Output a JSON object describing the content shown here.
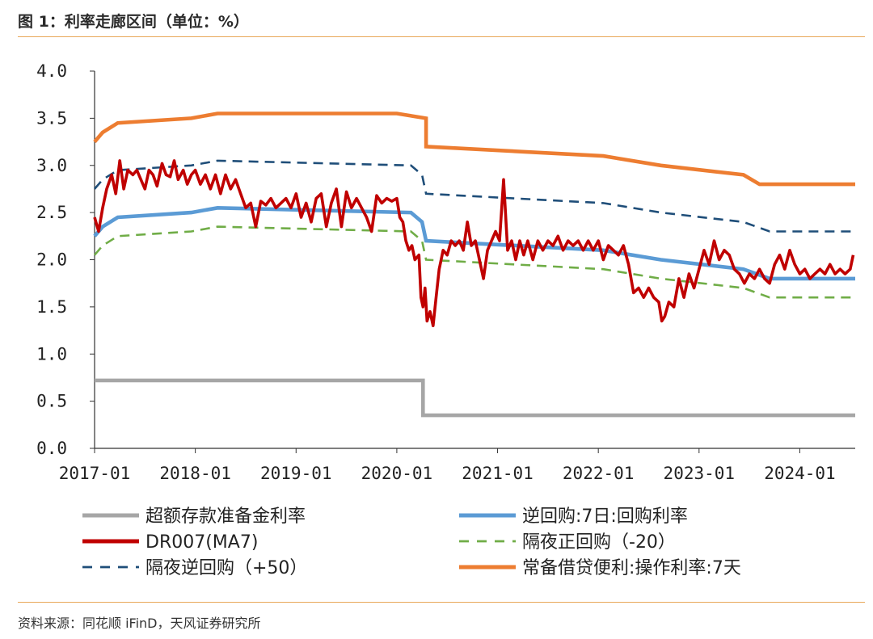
{
  "header": {
    "title": "图 1：利率走廊区间（单位：%）"
  },
  "footer": {
    "source": "资料来源：同花顺 iFinD，天风证券研究所"
  },
  "chart_data": {
    "type": "line",
    "title": "利率走廊区间（单位：%）",
    "ylim": [
      0,
      4
    ],
    "yticks": [
      "0.0",
      "0.5",
      "1.0",
      "1.5",
      "2.0",
      "2.5",
      "3.0",
      "3.5",
      "4.0"
    ],
    "xlim": [
      2017.0,
      2024.55
    ],
    "xticks": [
      {
        "label": "2017-01",
        "t": 2017.0
      },
      {
        "label": "2018-01",
        "t": 2018.0
      },
      {
        "label": "2019-01",
        "t": 2019.0
      },
      {
        "label": "2020-01",
        "t": 2020.0
      },
      {
        "label": "2021-01",
        "t": 2021.0
      },
      {
        "label": "2022-01",
        "t": 2022.0
      },
      {
        "label": "2023-01",
        "t": 2023.0
      },
      {
        "label": "2024-01",
        "t": 2024.0
      }
    ],
    "series": [
      {
        "name": "超额存款准备金利率",
        "color": "#a6a6a6",
        "style": "solid",
        "points": [
          [
            2017.0,
            0.72
          ],
          [
            2020.26,
            0.72
          ],
          [
            2020.26,
            0.35
          ],
          [
            2024.55,
            0.35
          ]
        ]
      },
      {
        "name": "逆回购:7日:回购利率",
        "color": "#5b9bd5",
        "style": "solid",
        "points": [
          [
            2017.0,
            2.25
          ],
          [
            2017.08,
            2.35
          ],
          [
            2017.23,
            2.45
          ],
          [
            2017.96,
            2.5
          ],
          [
            2018.22,
            2.55
          ],
          [
            2020.14,
            2.5
          ],
          [
            2020.25,
            2.4
          ],
          [
            2020.29,
            2.2
          ],
          [
            2022.05,
            2.1
          ],
          [
            2022.62,
            2.0
          ],
          [
            2023.44,
            1.9
          ],
          [
            2023.7,
            1.8
          ],
          [
            2024.55,
            1.8
          ]
        ]
      },
      {
        "name": "DR007(MA7)",
        "color": "#c00000",
        "style": "solid",
        "points": [
          [
            2017.0,
            2.45
          ],
          [
            2017.04,
            2.3
          ],
          [
            2017.08,
            2.55
          ],
          [
            2017.12,
            2.75
          ],
          [
            2017.17,
            2.9
          ],
          [
            2017.21,
            2.7
          ],
          [
            2017.25,
            3.05
          ],
          [
            2017.29,
            2.75
          ],
          [
            2017.33,
            2.95
          ],
          [
            2017.38,
            2.9
          ],
          [
            2017.42,
            2.95
          ],
          [
            2017.46,
            2.85
          ],
          [
            2017.5,
            2.75
          ],
          [
            2017.54,
            2.95
          ],
          [
            2017.58,
            2.9
          ],
          [
            2017.62,
            2.78
          ],
          [
            2017.67,
            3.02
          ],
          [
            2017.71,
            2.9
          ],
          [
            2017.75,
            2.88
          ],
          [
            2017.79,
            3.05
          ],
          [
            2017.83,
            2.85
          ],
          [
            2017.88,
            2.95
          ],
          [
            2017.92,
            2.8
          ],
          [
            2017.96,
            2.9
          ],
          [
            2018.0,
            2.95
          ],
          [
            2018.05,
            2.8
          ],
          [
            2018.1,
            2.9
          ],
          [
            2018.15,
            2.75
          ],
          [
            2018.2,
            2.9
          ],
          [
            2018.25,
            2.7
          ],
          [
            2018.3,
            2.9
          ],
          [
            2018.35,
            2.75
          ],
          [
            2018.4,
            2.85
          ],
          [
            2018.45,
            2.7
          ],
          [
            2018.5,
            2.55
          ],
          [
            2018.55,
            2.6
          ],
          [
            2018.6,
            2.35
          ],
          [
            2018.65,
            2.62
          ],
          [
            2018.7,
            2.58
          ],
          [
            2018.75,
            2.65
          ],
          [
            2018.8,
            2.55
          ],
          [
            2018.85,
            2.6
          ],
          [
            2018.9,
            2.65
          ],
          [
            2018.95,
            2.55
          ],
          [
            2019.0,
            2.7
          ],
          [
            2019.05,
            2.45
          ],
          [
            2019.1,
            2.6
          ],
          [
            2019.15,
            2.4
          ],
          [
            2019.2,
            2.65
          ],
          [
            2019.25,
            2.7
          ],
          [
            2019.3,
            2.35
          ],
          [
            2019.35,
            2.6
          ],
          [
            2019.4,
            2.75
          ],
          [
            2019.45,
            2.35
          ],
          [
            2019.5,
            2.72
          ],
          [
            2019.55,
            2.55
          ],
          [
            2019.6,
            2.65
          ],
          [
            2019.65,
            2.55
          ],
          [
            2019.7,
            2.45
          ],
          [
            2019.75,
            2.3
          ],
          [
            2019.8,
            2.68
          ],
          [
            2019.85,
            2.6
          ],
          [
            2019.9,
            2.65
          ],
          [
            2019.95,
            2.62
          ],
          [
            2020.0,
            2.65
          ],
          [
            2020.03,
            2.45
          ],
          [
            2020.06,
            2.4
          ],
          [
            2020.09,
            2.2
          ],
          [
            2020.12,
            2.1
          ],
          [
            2020.15,
            2.15
          ],
          [
            2020.18,
            2.0
          ],
          [
            2020.22,
            2.05
          ],
          [
            2020.24,
            1.6
          ],
          [
            2020.26,
            1.5
          ],
          [
            2020.28,
            1.7
          ],
          [
            2020.3,
            1.35
          ],
          [
            2020.33,
            1.45
          ],
          [
            2020.36,
            1.3
          ],
          [
            2020.39,
            1.6
          ],
          [
            2020.42,
            1.9
          ],
          [
            2020.46,
            2.1
          ],
          [
            2020.5,
            2.05
          ],
          [
            2020.54,
            2.2
          ],
          [
            2020.58,
            2.15
          ],
          [
            2020.62,
            2.2
          ],
          [
            2020.66,
            2.1
          ],
          [
            2020.7,
            2.4
          ],
          [
            2020.74,
            2.15
          ],
          [
            2020.78,
            2.2
          ],
          [
            2020.82,
            2.0
          ],
          [
            2020.86,
            1.8
          ],
          [
            2020.9,
            2.1
          ],
          [
            2020.94,
            2.2
          ],
          [
            2020.98,
            2.3
          ],
          [
            2021.02,
            2.2
          ],
          [
            2021.06,
            2.85
          ],
          [
            2021.1,
            2.1
          ],
          [
            2021.14,
            2.2
          ],
          [
            2021.18,
            2.0
          ],
          [
            2021.22,
            2.2
          ],
          [
            2021.26,
            2.05
          ],
          [
            2021.3,
            2.2
          ],
          [
            2021.35,
            2.0
          ],
          [
            2021.4,
            2.2
          ],
          [
            2021.45,
            2.1
          ],
          [
            2021.5,
            2.2
          ],
          [
            2021.55,
            2.15
          ],
          [
            2021.6,
            2.25
          ],
          [
            2021.65,
            2.1
          ],
          [
            2021.7,
            2.2
          ],
          [
            2021.75,
            2.15
          ],
          [
            2021.8,
            2.2
          ],
          [
            2021.85,
            2.1
          ],
          [
            2021.9,
            2.2
          ],
          [
            2021.95,
            2.1
          ],
          [
            2022.0,
            2.2
          ],
          [
            2022.05,
            2.0
          ],
          [
            2022.1,
            2.15
          ],
          [
            2022.15,
            2.1
          ],
          [
            2022.2,
            2.05
          ],
          [
            2022.25,
            2.15
          ],
          [
            2022.3,
            1.95
          ],
          [
            2022.35,
            1.65
          ],
          [
            2022.4,
            1.7
          ],
          [
            2022.45,
            1.6
          ],
          [
            2022.5,
            1.7
          ],
          [
            2022.55,
            1.6
          ],
          [
            2022.6,
            1.55
          ],
          [
            2022.63,
            1.35
          ],
          [
            2022.66,
            1.4
          ],
          [
            2022.7,
            1.55
          ],
          [
            2022.75,
            1.5
          ],
          [
            2022.8,
            1.8
          ],
          [
            2022.85,
            1.6
          ],
          [
            2022.9,
            1.85
          ],
          [
            2022.95,
            1.7
          ],
          [
            2023.0,
            1.9
          ],
          [
            2023.05,
            2.1
          ],
          [
            2023.1,
            1.95
          ],
          [
            2023.15,
            2.2
          ],
          [
            2023.2,
            2.0
          ],
          [
            2023.25,
            2.1
          ],
          [
            2023.3,
            2.05
          ],
          [
            2023.35,
            1.9
          ],
          [
            2023.4,
            1.85
          ],
          [
            2023.45,
            1.75
          ],
          [
            2023.5,
            1.85
          ],
          [
            2023.55,
            1.8
          ],
          [
            2023.6,
            1.9
          ],
          [
            2023.65,
            1.8
          ],
          [
            2023.7,
            1.75
          ],
          [
            2023.75,
            1.95
          ],
          [
            2023.8,
            2.05
          ],
          [
            2023.85,
            1.9
          ],
          [
            2023.9,
            2.1
          ],
          [
            2023.95,
            1.95
          ],
          [
            2024.0,
            1.85
          ],
          [
            2024.05,
            1.9
          ],
          [
            2024.1,
            1.8
          ],
          [
            2024.15,
            1.85
          ],
          [
            2024.2,
            1.9
          ],
          [
            2024.25,
            1.85
          ],
          [
            2024.3,
            1.95
          ],
          [
            2024.35,
            1.85
          ],
          [
            2024.4,
            1.9
          ],
          [
            2024.45,
            1.85
          ],
          [
            2024.5,
            1.9
          ],
          [
            2024.53,
            2.05
          ]
        ]
      },
      {
        "name": "隔夜正回购（-20）",
        "color": "#70ad47",
        "style": "dashed",
        "points": [
          [
            2017.0,
            2.05
          ],
          [
            2017.08,
            2.15
          ],
          [
            2017.23,
            2.25
          ],
          [
            2017.96,
            2.3
          ],
          [
            2018.22,
            2.35
          ],
          [
            2020.14,
            2.3
          ],
          [
            2020.25,
            2.2
          ],
          [
            2020.29,
            2.0
          ],
          [
            2022.05,
            1.9
          ],
          [
            2022.62,
            1.8
          ],
          [
            2023.44,
            1.7
          ],
          [
            2023.7,
            1.6
          ],
          [
            2024.55,
            1.6
          ]
        ]
      },
      {
        "name": "隔夜逆回购（+50）",
        "color": "#1f4e79",
        "style": "dashed",
        "points": [
          [
            2017.0,
            2.75
          ],
          [
            2017.08,
            2.85
          ],
          [
            2017.23,
            2.95
          ],
          [
            2017.96,
            3.0
          ],
          [
            2018.22,
            3.05
          ],
          [
            2020.14,
            3.0
          ],
          [
            2020.25,
            2.9
          ],
          [
            2020.29,
            2.7
          ],
          [
            2022.05,
            2.6
          ],
          [
            2022.62,
            2.5
          ],
          [
            2023.44,
            2.4
          ],
          [
            2023.7,
            2.3
          ],
          [
            2024.55,
            2.3
          ]
        ]
      },
      {
        "name": "常备借贷便利:操作利率:7天",
        "color": "#ed7d31",
        "style": "solid",
        "points": [
          [
            2017.0,
            3.25
          ],
          [
            2017.08,
            3.35
          ],
          [
            2017.23,
            3.45
          ],
          [
            2017.96,
            3.5
          ],
          [
            2018.22,
            3.55
          ],
          [
            2020.0,
            3.55
          ],
          [
            2020.29,
            3.5
          ],
          [
            2020.29,
            3.2
          ],
          [
            2022.05,
            3.1
          ],
          [
            2022.62,
            3.0
          ],
          [
            2023.44,
            2.9
          ],
          [
            2023.6,
            2.8
          ],
          [
            2024.55,
            2.8
          ]
        ]
      }
    ],
    "legend": [
      {
        "label": "超额存款准备金利率",
        "color": "#a6a6a6",
        "style": "solid"
      },
      {
        "label": "逆回购:7日:回购利率",
        "color": "#5b9bd5",
        "style": "solid"
      },
      {
        "label": "DR007(MA7)",
        "color": "#c00000",
        "style": "solid"
      },
      {
        "label": "隔夜正回购（-20）",
        "color": "#70ad47",
        "style": "dashed"
      },
      {
        "label": "隔夜逆回购（+50）",
        "color": "#1f4e79",
        "style": "dashed"
      },
      {
        "label": "常备借贷便利:操作利率:7天",
        "color": "#ed7d31",
        "style": "solid"
      }
    ]
  }
}
